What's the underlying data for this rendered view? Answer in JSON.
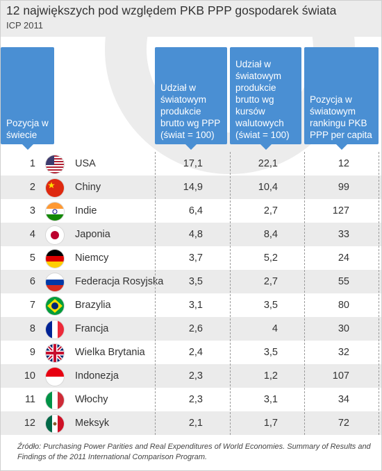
{
  "title": "12 największych pod względem PKB PPP gospodarek świata",
  "subtitle": "ICP 2011",
  "source": "Źródło: Purchasing Power Parities and Real Expenditures of World Economies. Summary of Results and Findings of the 2011 International Comparison Program.",
  "chart_data": {
    "type": "table",
    "columns": [
      "Pozycja w świecie",
      "Udział w światowym produkcie brutto wg PPP (świat = 100)",
      "Udział w światowym produkcie brutto wg kursów walutowych (świat = 100)",
      "Pozycja w światowym rankingu PKB PPP per capita"
    ],
    "rows": [
      {
        "pos": "1",
        "flag": "us-flag-icon",
        "country": "USA",
        "ppp_share": "17,1",
        "fx_share": "22,1",
        "per_capita_rank": "12"
      },
      {
        "pos": "2",
        "flag": "cn-flag-icon",
        "country": "Chiny",
        "ppp_share": "14,9",
        "fx_share": "10,4",
        "per_capita_rank": "99"
      },
      {
        "pos": "3",
        "flag": "in-flag-icon",
        "country": "Indie",
        "ppp_share": "6,4",
        "fx_share": "2,7",
        "per_capita_rank": "127"
      },
      {
        "pos": "4",
        "flag": "jp-flag-icon",
        "country": "Japonia",
        "ppp_share": "4,8",
        "fx_share": "8,4",
        "per_capita_rank": "33"
      },
      {
        "pos": "5",
        "flag": "de-flag-icon",
        "country": "Niemcy",
        "ppp_share": "3,7",
        "fx_share": "5,2",
        "per_capita_rank": "24"
      },
      {
        "pos": "6",
        "flag": "ru-flag-icon",
        "country": "Federacja Rosyjska",
        "ppp_share": "3,5",
        "fx_share": "2,7",
        "per_capita_rank": "55"
      },
      {
        "pos": "7",
        "flag": "br-flag-icon",
        "country": "Brazylia",
        "ppp_share": "3,1",
        "fx_share": "3,5",
        "per_capita_rank": "80"
      },
      {
        "pos": "8",
        "flag": "fr-flag-icon",
        "country": "Francja",
        "ppp_share": "2,6",
        "fx_share": "4",
        "per_capita_rank": "30"
      },
      {
        "pos": "9",
        "flag": "gb-flag-icon",
        "country": "Wielka Brytania",
        "ppp_share": "2,4",
        "fx_share": "3,5",
        "per_capita_rank": "32"
      },
      {
        "pos": "10",
        "flag": "id-flag-icon",
        "country": "Indonezja",
        "ppp_share": "2,3",
        "fx_share": "1,2",
        "per_capita_rank": "107"
      },
      {
        "pos": "11",
        "flag": "it-flag-icon",
        "country": "Włochy",
        "ppp_share": "2,3",
        "fx_share": "3,1",
        "per_capita_rank": "34"
      },
      {
        "pos": "12",
        "flag": "mx-flag-icon",
        "country": "Meksyk",
        "ppp_share": "2,1",
        "fx_share": "1,7",
        "per_capita_rank": "72"
      }
    ]
  },
  "colors": {
    "header_fill": "#4a8fd3",
    "band": "#ebebeb"
  }
}
